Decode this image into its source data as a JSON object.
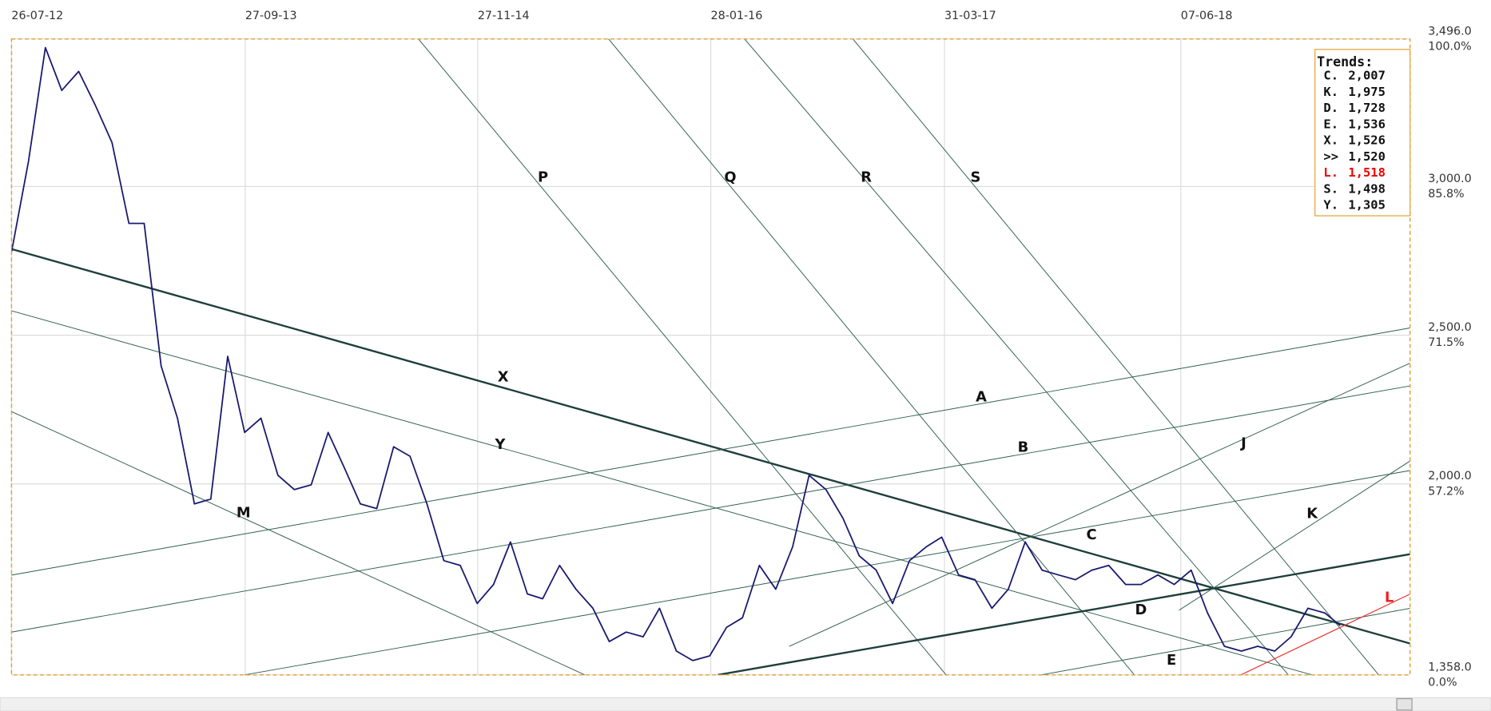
{
  "chart_data": {
    "type": "line",
    "x": [
      "26-07-12",
      "26-08-12",
      "26-09-12",
      "26-10-12",
      "26-11-12",
      "26-12-12",
      "26-01-13",
      "26-02-13",
      "26-03-13",
      "26-04-13",
      "26-05-13",
      "26-06-13",
      "26-07-13",
      "26-08-13",
      "26-09-13",
      "26-10-13",
      "26-11-13",
      "26-12-13",
      "26-01-14",
      "26-02-14",
      "26-03-14",
      "26-04-14",
      "26-05-14",
      "26-06-14",
      "26-07-14",
      "26-08-14",
      "26-09-14",
      "26-10-14",
      "26-11-14",
      "26-12-14",
      "26-01-15",
      "26-02-15",
      "26-03-15",
      "26-04-15",
      "26-05-15",
      "26-06-15",
      "26-07-15",
      "26-08-15",
      "26-09-15",
      "26-10-15",
      "26-11-15",
      "26-12-15",
      "26-01-16",
      "26-02-16",
      "26-03-16",
      "26-04-16",
      "26-05-16",
      "26-06-16",
      "26-07-16",
      "26-08-16",
      "26-09-16",
      "26-10-16",
      "26-11-16",
      "26-12-16",
      "26-01-17",
      "26-02-17",
      "26-03-17",
      "26-04-17",
      "26-05-17",
      "26-06-17",
      "26-07-17",
      "26-08-17",
      "26-09-17",
      "26-10-17",
      "26-11-17",
      "26-12-17",
      "26-01-18",
      "26-02-18",
      "26-03-18",
      "26-04-18",
      "26-05-18",
      "26-06-18",
      "26-07-18",
      "26-08-18",
      "26-09-18",
      "26-10-18",
      "26-11-18",
      "26-12-18",
      "26-01-19",
      "26-02-19",
      "26-03-19"
    ],
    "values": [
      2780,
      3084,
      3467,
      3323,
      3387,
      3275,
      3148,
      2876,
      2876,
      2397,
      2221,
      1933,
      1949,
      2429,
      2173,
      2221,
      2029,
      1981,
      1997,
      2173,
      2061,
      1933,
      1917,
      2125,
      2093,
      1933,
      1742,
      1726,
      1598,
      1662,
      1805,
      1630,
      1614,
      1726,
      1646,
      1582,
      1470,
      1502,
      1486,
      1582,
      1438,
      1406,
      1422,
      1518,
      1550,
      1726,
      1646,
      1789,
      2029,
      1981,
      1885,
      1758,
      1710,
      1598,
      1742,
      1789,
      1821,
      1694,
      1678,
      1582,
      1646,
      1805,
      1710,
      1694,
      1678,
      1710,
      1726,
      1662,
      1662,
      1694,
      1662,
      1710,
      1566,
      1454,
      1438,
      1454,
      1438,
      1486,
      1582,
      1566,
      1524
    ],
    "color": "#1a1a6e",
    "xlim": [
      "26-07-12",
      "01-08-19"
    ],
    "xticks": [
      "26-07-12",
      "27-09-13",
      "27-11-14",
      "28-01-16",
      "31-03-17",
      "07-06-18"
    ],
    "ylim": [
      1358,
      3496
    ],
    "yticks": [
      {
        "value": 3496,
        "label": "3,496.0"
      },
      {
        "value": 3000,
        "label": "3,000.0"
      },
      {
        "value": 2500,
        "label": "2,500.0"
      },
      {
        "value": 2000,
        "label": "2,000.0"
      },
      {
        "value": 1358,
        "label": "1,358.0"
      }
    ],
    "y2ticks": [
      {
        "value": 100,
        "label": "100.0%"
      },
      {
        "value": 85.8,
        "label": "85.8%"
      },
      {
        "value": 71.5,
        "label": "71.5%"
      },
      {
        "value": 57.2,
        "label": "57.2%"
      },
      {
        "value": 0,
        "label": "0.0%"
      }
    ],
    "grid": true,
    "annotations": [
      "P",
      "Q",
      "R",
      "S",
      "X",
      "Y",
      "M",
      "A",
      "B",
      "C",
      "D",
      "E",
      "J",
      "K",
      "L"
    ],
    "trends": {
      "title": "Trends:",
      "names": [
        "C.",
        "K.",
        "D.",
        "E.",
        "X.",
        ">>",
        "L.",
        "S.",
        "Y."
      ],
      "values": [
        2007,
        1975,
        1728,
        1536,
        1526,
        1520,
        1518,
        1498,
        1305
      ],
      "value_labels": [
        "2,007",
        "1,975",
        "1,728",
        "1,536",
        "1,526",
        "1,520",
        "1,518",
        "1,498",
        "1,305"
      ],
      "colors": [
        "#111",
        "#111",
        "#111",
        "#111",
        "#111",
        "#111",
        "#e00",
        "#111",
        "#111"
      ]
    }
  }
}
